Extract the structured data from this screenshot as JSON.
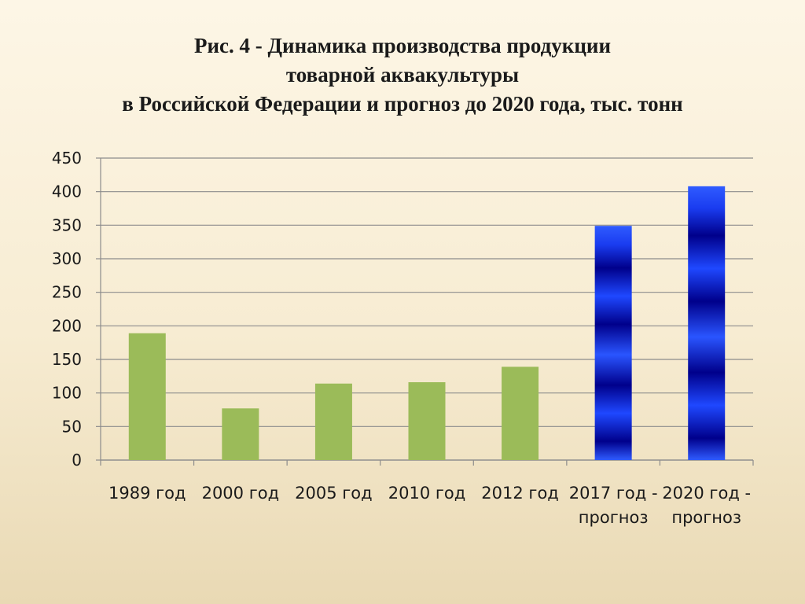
{
  "slide": {
    "title_lines": [
      "Рис. 4 - Динамика производства продукции",
      "товарной аквакультуры",
      "в Российской Федерации и прогноз до 2020 года, тыс. тонн"
    ]
  },
  "chart_data": {
    "type": "bar",
    "title": "Рис. 4 - Динамика производства продукции товарной аквакультуры в Российской Федерации и прогноз до 2020 года, тыс. тонн",
    "categories": [
      [
        "1989 год"
      ],
      [
        "2000 год"
      ],
      [
        "2005 год"
      ],
      [
        "2010 год"
      ],
      [
        "2012 год"
      ],
      [
        "2017 год -",
        "прогноз"
      ],
      [
        "2020 год -",
        "прогноз"
      ]
    ],
    "values": [
      189,
      77,
      114,
      116,
      139,
      349,
      408
    ],
    "forecast": [
      false,
      false,
      false,
      false,
      false,
      true,
      true
    ],
    "ylim": [
      0,
      450
    ],
    "yticks": [
      0,
      50,
      100,
      150,
      200,
      250,
      300,
      350,
      400,
      450
    ],
    "grid": true,
    "colors": {
      "actual": "#9bbb59",
      "forecast_light": "#2f5bff",
      "forecast_dark": "#00008b",
      "grid": "#8c8c8c"
    }
  }
}
